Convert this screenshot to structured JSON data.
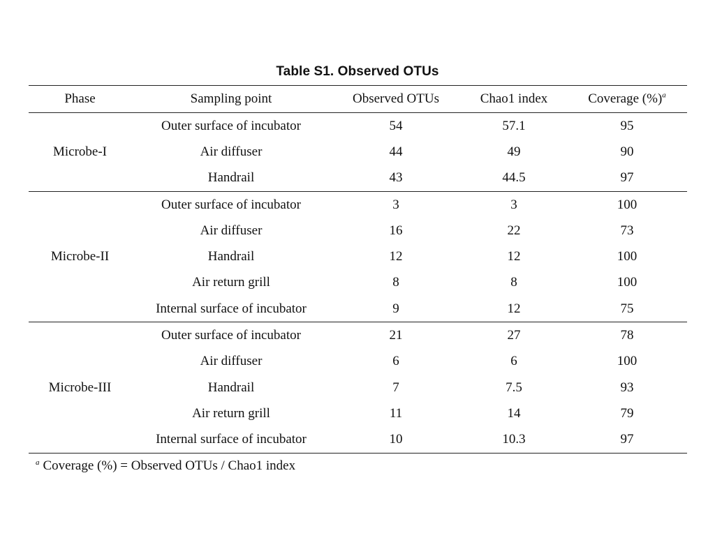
{
  "title": "Table S1. Observed OTUs",
  "table": {
    "headers": {
      "phase": "Phase",
      "sampling_point": "Sampling point",
      "observed_otus": "Observed OTUs",
      "chao1": "Chao1 index",
      "coverage": "Coverage (%)",
      "coverage_mark": "a"
    },
    "groups": [
      {
        "phase": "Microbe-I",
        "rows": [
          {
            "site": "Outer surface of incubator",
            "obs": "54",
            "chao": "57.1",
            "cov": "95"
          },
          {
            "site": "Air diffuser",
            "obs": "44",
            "chao": "49",
            "cov": "90"
          },
          {
            "site": "Handrail",
            "obs": "43",
            "chao": "44.5",
            "cov": "97"
          }
        ]
      },
      {
        "phase": "Microbe-II",
        "rows": [
          {
            "site": "Outer surface of incubator",
            "obs": "3",
            "chao": "3",
            "cov": "100"
          },
          {
            "site": "Air diffuser",
            "obs": "16",
            "chao": "22",
            "cov": "73"
          },
          {
            "site": "Handrail",
            "obs": "12",
            "chao": "12",
            "cov": "100"
          },
          {
            "site": "Air return grill",
            "obs": "8",
            "chao": "8",
            "cov": "100"
          },
          {
            "site": "Internal surface of incubator",
            "obs": "9",
            "chao": "12",
            "cov": "75"
          }
        ]
      },
      {
        "phase": "Microbe-III",
        "rows": [
          {
            "site": "Outer surface of incubator",
            "obs": "21",
            "chao": "27",
            "cov": "78"
          },
          {
            "site": "Air diffuser",
            "obs": "6",
            "chao": "6",
            "cov": "100"
          },
          {
            "site": "Handrail",
            "obs": "7",
            "chao": "7.5",
            "cov": "93"
          },
          {
            "site": "Air return grill",
            "obs": "11",
            "chao": "14",
            "cov": "79"
          },
          {
            "site": "Internal surface of incubator",
            "obs": "10",
            "chao": "10.3",
            "cov": "97"
          }
        ]
      }
    ]
  },
  "footnote": {
    "mark": "a",
    "text": "Coverage (%) = Observed OTUs / Chao1 index"
  }
}
